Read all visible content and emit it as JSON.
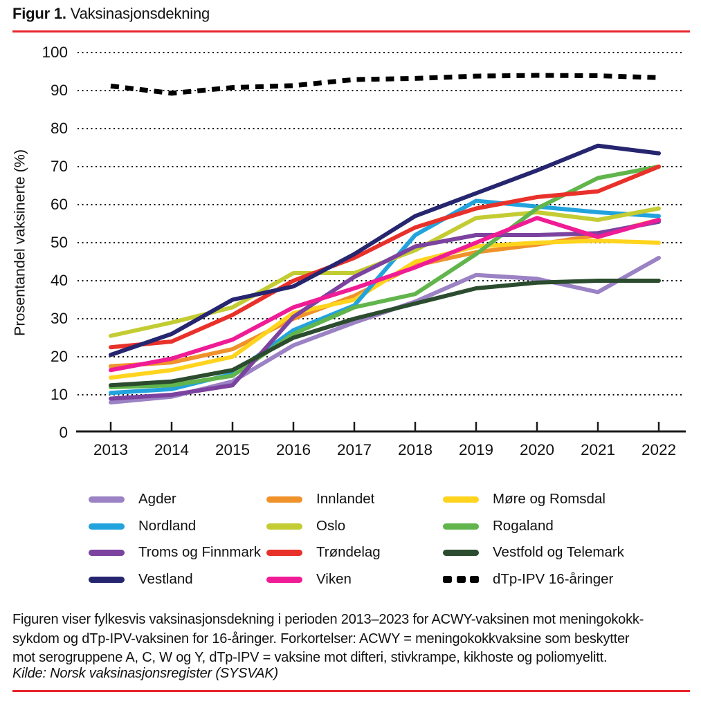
{
  "page": {
    "figure_label": "Figur 1.",
    "figure_title": " Vaksinasjonsdekning",
    "accent_rule_color": "#e8242b",
    "caption_line1": "Figuren viser fylkesvis vaksinasjonsdekning i perioden 2013–2023 for ACWY-vaksinen mot meningokokk-",
    "caption_line2": "sykdom og dTp-IPV-vaksinen for 16-åringer. Forkortelser: ACWY = meningokokkvaksine som beskytter",
    "caption_line3": "mot serogruppene A, C, W og Y, dTp-IPV = vaksine mot difteri, stivkrampe, kikhoste og poliomyelitt.",
    "source": "Kilde: Norsk vaksinasjonsregister (SYSVAK)"
  },
  "chart_data": {
    "type": "line",
    "title": "Figur 1. Vaksinasjonsdekning",
    "xlabel": "",
    "ylabel": "Prosentandel vaksinerte (%)",
    "x": [
      2013,
      2014,
      2015,
      2016,
      2017,
      2018,
      2019,
      2020,
      2021,
      2022
    ],
    "x_labels": [
      "2013",
      "2014",
      "2015",
      "2016",
      "2017",
      "2018",
      "2019",
      "2020",
      "2021",
      "2022"
    ],
    "ylim": [
      0,
      100
    ],
    "yticks": [
      0,
      10,
      20,
      30,
      40,
      50,
      60,
      70,
      80,
      90,
      100
    ],
    "grid": "horizontal-dotted",
    "legend_position": "bottom",
    "series": [
      {
        "name": "Agder",
        "color": "#9b82c4",
        "style": "solid",
        "values": [
          8,
          9.5,
          13.5,
          23,
          29,
          34.5,
          41.5,
          40.5,
          37,
          46
        ]
      },
      {
        "name": "Innlandet",
        "color": "#f0922b",
        "style": "solid",
        "values": [
          17.5,
          18.5,
          22,
          30,
          36,
          44,
          47.5,
          49.5,
          52,
          56
        ]
      },
      {
        "name": "Møre og Romsdal",
        "color": "#ffd41f",
        "style": "solid",
        "values": [
          14.5,
          16.5,
          20,
          31.5,
          35,
          45,
          49,
          50,
          50.5,
          50
        ]
      },
      {
        "name": "Nordland",
        "color": "#22a3dd",
        "style": "solid",
        "values": [
          10.5,
          11.5,
          15.5,
          27,
          33.5,
          52,
          61,
          59.5,
          58,
          57
        ]
      },
      {
        "name": "Oslo",
        "color": "#c3cc33",
        "style": "solid",
        "values": [
          25.5,
          29,
          33,
          42,
          42,
          48,
          56.5,
          58,
          56,
          59
        ]
      },
      {
        "name": "Rogaland",
        "color": "#61b54c",
        "style": "solid",
        "values": [
          12,
          12.5,
          15,
          26,
          33,
          36.5,
          47,
          59,
          67,
          70
        ]
      },
      {
        "name": "Troms og Finnmark",
        "color": "#7b439f",
        "style": "solid",
        "values": [
          9,
          10,
          12.5,
          30.5,
          41,
          49,
          52,
          52,
          52.5,
          55.5
        ]
      },
      {
        "name": "Trøndelag",
        "color": "#e8312a",
        "style": "solid",
        "values": [
          22.5,
          24,
          31,
          40,
          46,
          54,
          59,
          62,
          63.5,
          70
        ]
      },
      {
        "name": "Vestfold og Telemark",
        "color": "#2b4c2e",
        "style": "solid",
        "values": [
          12.5,
          13.5,
          16.5,
          25,
          30,
          34,
          38,
          39.5,
          40,
          40
        ]
      },
      {
        "name": "Vestland",
        "color": "#26256f",
        "style": "solid",
        "values": [
          20.5,
          26,
          35,
          38.5,
          47,
          57,
          63,
          69,
          75.5,
          73.5
        ]
      },
      {
        "name": "Viken",
        "color": "#ef1c96",
        "style": "solid",
        "values": [
          16.5,
          19.5,
          24.5,
          33,
          38,
          43.5,
          50,
          56.5,
          51.5,
          56
        ]
      },
      {
        "name": "dTp-IPV 16-åringer",
        "color": "#000000",
        "style": "dashed",
        "values": [
          91.2,
          89.3,
          90.8,
          91.3,
          92.9,
          93.2,
          93.8,
          94,
          93.9,
          93.4
        ]
      }
    ]
  }
}
